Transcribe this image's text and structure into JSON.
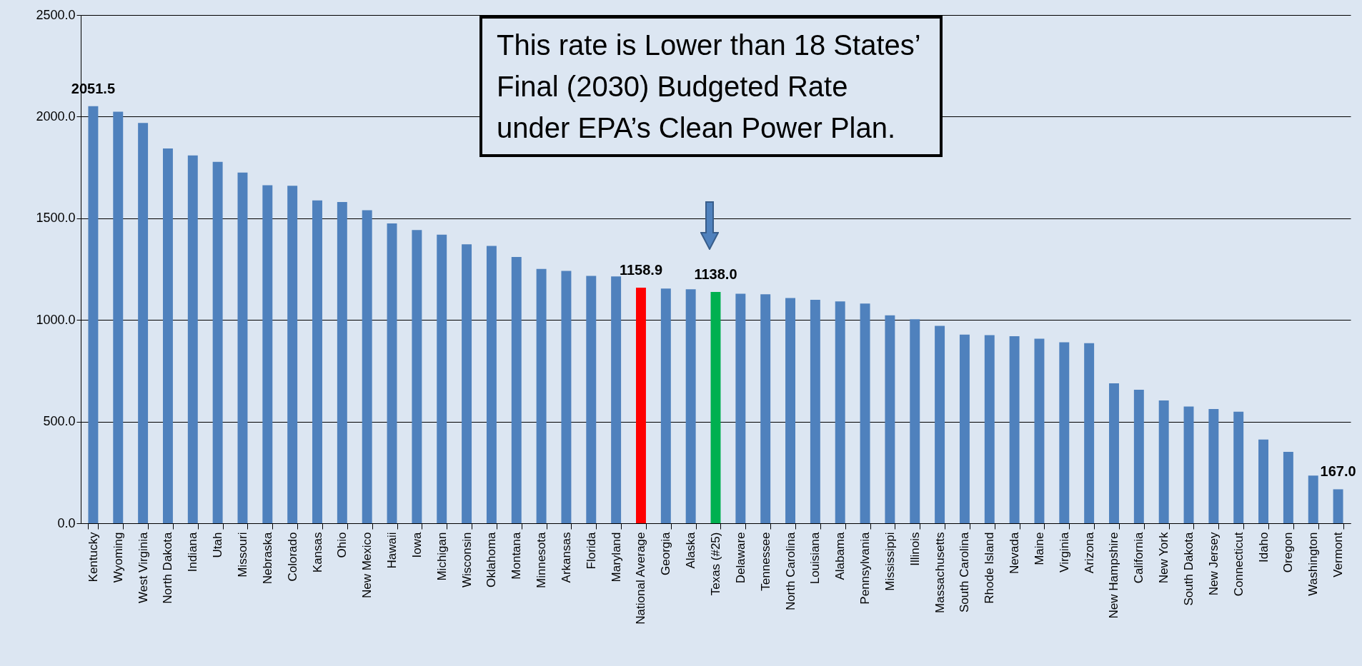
{
  "chart_data": {
    "type": "bar",
    "categories": [
      "Kentucky",
      "Wyoming",
      "West Virginia",
      "North Dakota",
      "Indiana",
      "Utah",
      "Missouri",
      "Nebraska",
      "Colorado",
      "Kansas",
      "Ohio",
      "New Mexico",
      "Hawaii",
      "Iowa",
      "Michigan",
      "Wisconsin",
      "Oklahoma",
      "Montana",
      "Minnesota",
      "Arkansas",
      "Florida",
      "Maryland",
      "National Average",
      "Georgia",
      "Alaska",
      "Texas (#25)",
      "Delaware",
      "Tennessee",
      "North Carolina",
      "Louisiana",
      "Alabama",
      "Pennsylvania",
      "Mississippi",
      "Illinois",
      "Massachusetts",
      "South Carolina",
      "Rhode Island",
      "Nevada",
      "Maine",
      "Virginia",
      "Arizona",
      "New Hampshire",
      "California",
      "New York",
      "South Dakota",
      "New Jersey",
      "Connecticut",
      "Idaho",
      "Oregon",
      "Washington",
      "Vermont"
    ],
    "values": [
      2051.5,
      2024,
      1969,
      1843,
      1809,
      1778,
      1725,
      1663,
      1660,
      1588,
      1580,
      1540,
      1475,
      1442,
      1419,
      1372,
      1364,
      1310,
      1251,
      1241,
      1217,
      1214,
      1158.9,
      1154,
      1151,
      1138.0,
      1129,
      1126,
      1108,
      1099,
      1091,
      1081,
      1023,
      1003,
      971,
      928,
      925,
      920,
      908,
      890,
      886,
      688,
      657,
      604,
      574,
      562,
      549,
      412,
      351,
      234,
      167.0
    ],
    "colors": [
      "#4f81bd",
      "#4f81bd",
      "#4f81bd",
      "#4f81bd",
      "#4f81bd",
      "#4f81bd",
      "#4f81bd",
      "#4f81bd",
      "#4f81bd",
      "#4f81bd",
      "#4f81bd",
      "#4f81bd",
      "#4f81bd",
      "#4f81bd",
      "#4f81bd",
      "#4f81bd",
      "#4f81bd",
      "#4f81bd",
      "#4f81bd",
      "#4f81bd",
      "#4f81bd",
      "#4f81bd",
      "#ff0000",
      "#4f81bd",
      "#4f81bd",
      "#00b050",
      "#4f81bd",
      "#4f81bd",
      "#4f81bd",
      "#4f81bd",
      "#4f81bd",
      "#4f81bd",
      "#4f81bd",
      "#4f81bd",
      "#4f81bd",
      "#4f81bd",
      "#4f81bd",
      "#4f81bd",
      "#4f81bd",
      "#4f81bd",
      "#4f81bd",
      "#4f81bd",
      "#4f81bd",
      "#4f81bd",
      "#4f81bd",
      "#4f81bd",
      "#4f81bd",
      "#4f81bd",
      "#4f81bd",
      "#4f81bd",
      "#4f81bd"
    ],
    "value_labels": [
      "2051.5",
      null,
      null,
      null,
      null,
      null,
      null,
      null,
      null,
      null,
      null,
      null,
      null,
      null,
      null,
      null,
      null,
      null,
      null,
      null,
      null,
      null,
      "1158.9",
      null,
      null,
      "1138.0",
      null,
      null,
      null,
      null,
      null,
      null,
      null,
      null,
      null,
      null,
      null,
      null,
      null,
      null,
      null,
      null,
      null,
      null,
      null,
      null,
      null,
      null,
      null,
      null,
      "167.0"
    ],
    "ylim": [
      0,
      2500
    ],
    "yticks": [
      {
        "value": 0,
        "label": "0.0"
      },
      {
        "value": 500,
        "label": "500.0"
      },
      {
        "value": 1000,
        "label": "1000.0"
      },
      {
        "value": 1500,
        "label": "1500.0"
      },
      {
        "value": 2000,
        "label": "2000.0"
      },
      {
        "value": 2500,
        "label": "2500.0"
      }
    ],
    "grid": "y",
    "annotations": [
      "This rate is Lower than 18 States’ Final (2030) Budgeted Rate under EPA’s Clean Power Plan."
    ]
  }
}
